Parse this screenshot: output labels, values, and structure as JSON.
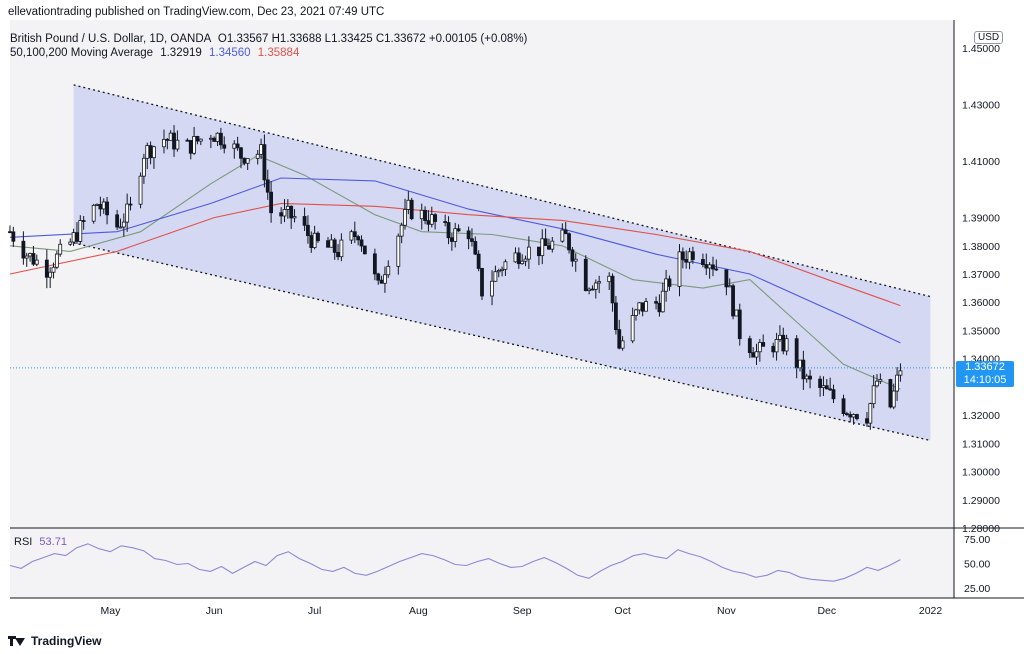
{
  "header": {
    "publisher": "ellevationtrading published on TradingView.com, Dec 23, 2021 07:49 UTC"
  },
  "legend": {
    "symbol": "British Pound / U.S. Dollar, 1D, OANDA",
    "ohlc": "O1.33567  H1.33688  L1.33425  C1.33672  +0.00105 (+0.08%)",
    "ma_label": "50,100,200 Moving Average",
    "ma50": "1.32919",
    "ma100": "1.34560",
    "ma200": "1.35884"
  },
  "price_axis": {
    "currency": "USD",
    "ticks": [
      "1.45000",
      "1.43000",
      "1.41000",
      "1.39000",
      "1.38000",
      "1.37000",
      "1.36000",
      "1.35000",
      "1.34000",
      "1.32000",
      "1.31000",
      "1.30000",
      "1.29000",
      "1.28000"
    ],
    "last_price": "1.33672",
    "countdown": "14:10:05"
  },
  "rsi": {
    "label": "RSI",
    "value": "53.71",
    "ticks": [
      "75.00",
      "50.00",
      "25.00"
    ]
  },
  "time_axis": {
    "labels": [
      "May",
      "Jun",
      "Jul",
      "Aug",
      "Sep",
      "Oct",
      "Nov",
      "Dec",
      "2022"
    ]
  },
  "footer": {
    "brand": "TradingView"
  },
  "colors": {
    "up": "#131722",
    "down": "#131722",
    "ma50": "#7a9a7a",
    "ma100": "#4d5bdc",
    "ma200": "#e0514a",
    "channel_fill": "#c9cff0",
    "rsi_line": "#8f86d6",
    "price_tag": "#2196f3"
  },
  "chart_data": {
    "type": "candlestick",
    "title": "British Pound / U.S. Dollar, 1D, OANDA",
    "ylim": [
      1.28,
      1.46
    ],
    "y_scale": "linear",
    "grid": false,
    "x_range": [
      "2021-04-01",
      "2021-12-23"
    ],
    "ohlc_last": {
      "open": 1.33567,
      "high": 1.33688,
      "low": 1.33425,
      "close": 1.33672
    },
    "close_path": [
      [
        "2021-04-01",
        1.385
      ],
      [
        "2021-04-06",
        1.377
      ],
      [
        "2021-04-12",
        1.372
      ],
      [
        "2021-04-19",
        1.381
      ],
      [
        "2021-04-23",
        1.388
      ],
      [
        "2021-04-27",
        1.395
      ],
      [
        "2021-05-03",
        1.387
      ],
      [
        "2021-05-07",
        1.393
      ],
      [
        "2021-05-11",
        1.413
      ],
      [
        "2021-05-17",
        1.418
      ],
      [
        "2021-05-24",
        1.415
      ],
      [
        "2021-05-31",
        1.42
      ],
      [
        "2021-06-04",
        1.418
      ],
      [
        "2021-06-09",
        1.412
      ],
      [
        "2021-06-15",
        1.413
      ],
      [
        "2021-06-18",
        1.392
      ],
      [
        "2021-06-25",
        1.39
      ],
      [
        "2021-07-01",
        1.381
      ],
      [
        "2021-07-08",
        1.378
      ],
      [
        "2021-07-14",
        1.385
      ],
      [
        "2021-07-20",
        1.365
      ],
      [
        "2021-07-23",
        1.376
      ],
      [
        "2021-07-29",
        1.393
      ],
      [
        "2021-08-04",
        1.39
      ],
      [
        "2021-08-10",
        1.384
      ],
      [
        "2021-08-16",
        1.385
      ],
      [
        "2021-08-20",
        1.364
      ],
      [
        "2021-08-26",
        1.373
      ],
      [
        "2021-09-01",
        1.378
      ],
      [
        "2021-09-07",
        1.379
      ],
      [
        "2021-09-14",
        1.383
      ],
      [
        "2021-09-20",
        1.367
      ],
      [
        "2021-09-27",
        1.368
      ],
      [
        "2021-09-30",
        1.344
      ],
      [
        "2021-10-06",
        1.358
      ],
      [
        "2021-10-12",
        1.36
      ],
      [
        "2021-10-18",
        1.375
      ],
      [
        "2021-10-22",
        1.378
      ],
      [
        "2021-10-27",
        1.375
      ],
      [
        "2021-11-01",
        1.368
      ],
      [
        "2021-11-05",
        1.349
      ],
      [
        "2021-11-10",
        1.342
      ],
      [
        "2021-11-15",
        1.345
      ],
      [
        "2021-11-19",
        1.345
      ],
      [
        "2021-11-25",
        1.332
      ],
      [
        "2021-12-01",
        1.328
      ],
      [
        "2021-12-07",
        1.322
      ],
      [
        "2021-12-13",
        1.32
      ],
      [
        "2021-12-16",
        1.332
      ],
      [
        "2021-12-20",
        1.323
      ],
      [
        "2021-12-23",
        1.3367
      ]
    ],
    "series": [
      {
        "name": "50,100,200 Moving Average (50)",
        "values": [
          [
            "2021-04-01",
            1.38
          ],
          [
            "2021-04-19",
            1.378
          ],
          [
            "2021-05-10",
            1.385
          ],
          [
            "2021-05-31",
            1.402
          ],
          [
            "2021-06-14",
            1.412
          ],
          [
            "2021-06-28",
            1.405
          ],
          [
            "2021-07-19",
            1.391
          ],
          [
            "2021-08-02",
            1.385
          ],
          [
            "2021-08-23",
            1.384
          ],
          [
            "2021-09-13",
            1.38
          ],
          [
            "2021-10-04",
            1.368
          ],
          [
            "2021-10-25",
            1.365
          ],
          [
            "2021-11-08",
            1.368
          ],
          [
            "2021-11-22",
            1.353
          ],
          [
            "2021-12-06",
            1.338
          ],
          [
            "2021-12-23",
            1.3292
          ]
        ]
      },
      {
        "name": "50,100,200 Moving Average (100)",
        "values": [
          [
            "2021-04-01",
            1.383
          ],
          [
            "2021-05-03",
            1.385
          ],
          [
            "2021-05-31",
            1.395
          ],
          [
            "2021-06-21",
            1.404
          ],
          [
            "2021-07-19",
            1.403
          ],
          [
            "2021-08-16",
            1.393
          ],
          [
            "2021-09-13",
            1.386
          ],
          [
            "2021-10-11",
            1.377
          ],
          [
            "2021-11-08",
            1.37
          ],
          [
            "2021-12-06",
            1.355
          ],
          [
            "2021-12-23",
            1.3456
          ]
        ]
      },
      {
        "name": "50,100,200 Moving Average (200)",
        "values": [
          [
            "2021-04-01",
            1.37
          ],
          [
            "2021-05-03",
            1.378
          ],
          [
            "2021-06-01",
            1.39
          ],
          [
            "2021-06-21",
            1.395
          ],
          [
            "2021-07-19",
            1.394
          ],
          [
            "2021-08-16",
            1.391
          ],
          [
            "2021-09-13",
            1.389
          ],
          [
            "2021-10-11",
            1.384
          ],
          [
            "2021-11-08",
            1.378
          ],
          [
            "2021-12-06",
            1.366
          ],
          [
            "2021-12-23",
            1.3588
          ]
        ]
      }
    ],
    "channel": {
      "upper": [
        [
          "2021-04-20",
          1.437
        ],
        [
          "2021-12-23",
          1.362
        ]
      ],
      "lower": [
        [
          "2021-04-20",
          1.381
        ],
        [
          "2021-12-23",
          1.311
        ]
      ]
    },
    "rsi": {
      "ylim": [
        15,
        85
      ],
      "last": 53.71,
      "path": [
        48,
        45,
        52,
        56,
        60,
        58,
        66,
        70,
        65,
        62,
        68,
        66,
        63,
        55,
        53,
        49,
        50,
        44,
        42,
        47,
        40,
        46,
        52,
        48,
        58,
        62,
        55,
        50,
        44,
        42,
        46,
        40,
        38,
        42,
        47,
        52,
        56,
        60,
        58,
        54,
        49,
        48,
        52,
        55,
        50,
        46,
        47,
        52,
        56,
        51,
        45,
        38,
        35,
        42,
        48,
        52,
        58,
        60,
        57,
        55,
        64,
        60,
        57,
        52,
        46,
        42,
        40,
        36,
        38,
        43,
        41,
        36,
        34,
        33,
        32,
        35,
        40,
        46,
        43,
        48,
        54
      ]
    }
  }
}
